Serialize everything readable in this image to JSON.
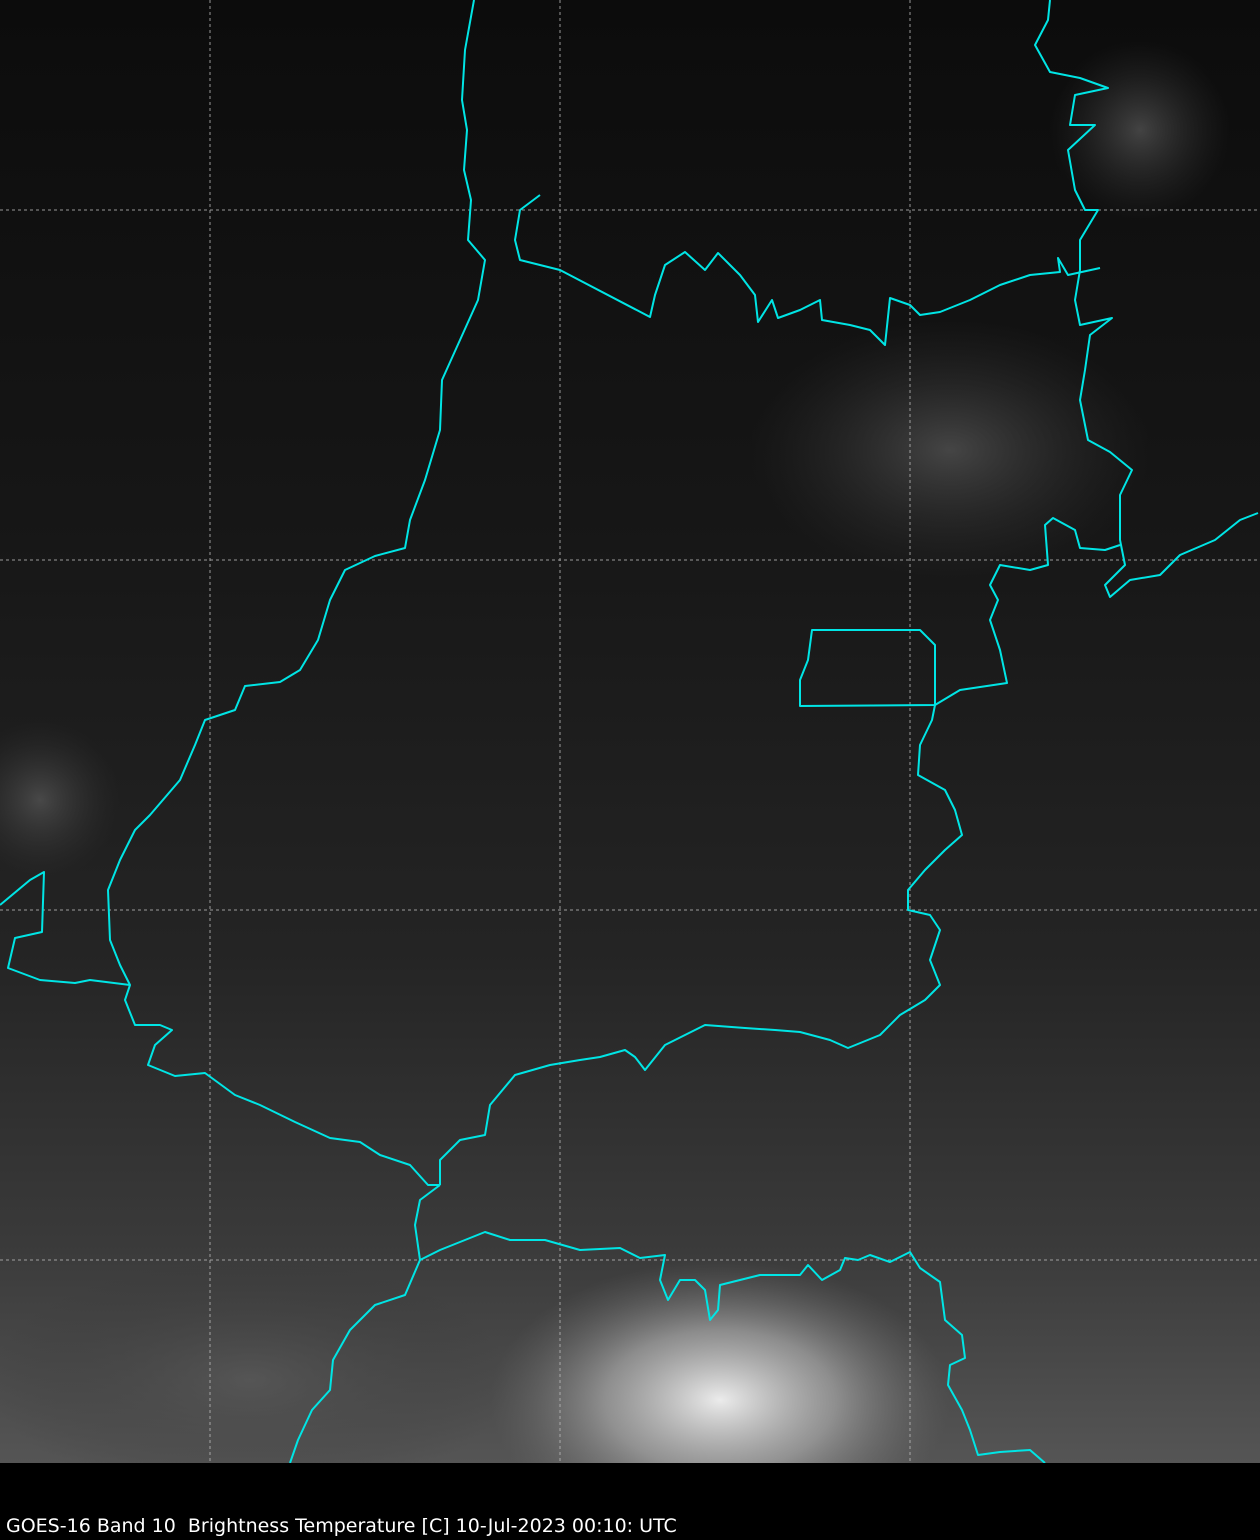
{
  "caption": "GOES-16 Band 10  Brightness Temperature [C] 10-Jul-2023 00:10: UTC",
  "map": {
    "product": "GOES-16 Band 10 brightness temperature",
    "colormap": "grayscale",
    "border_color": "#00e5e5",
    "gridline_color": "#bbbbbb",
    "gridline_style": "dashed",
    "background_color": "#000000"
  }
}
